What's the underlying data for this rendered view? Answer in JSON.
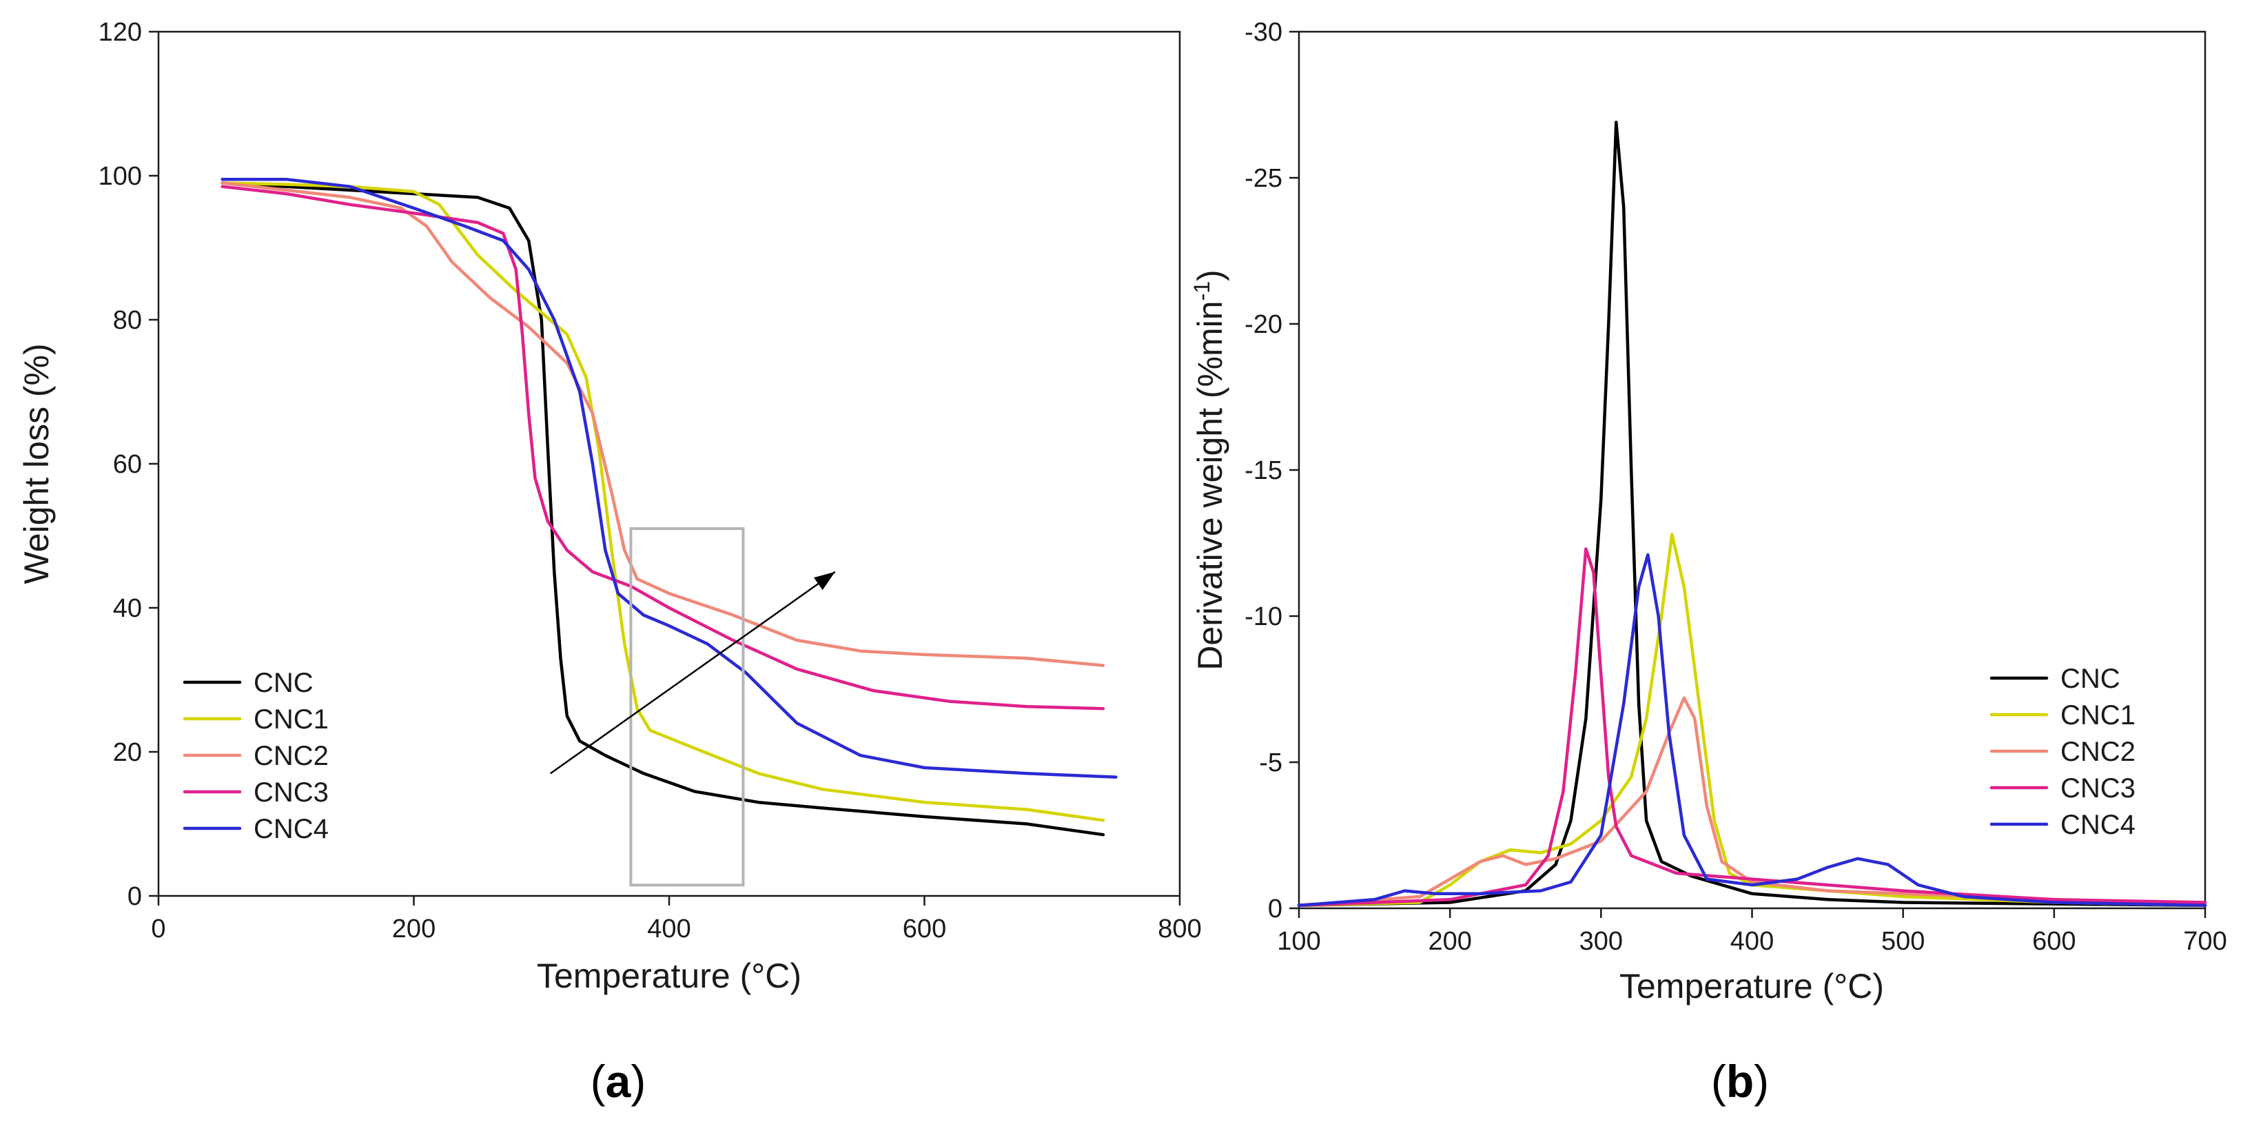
{
  "chart_data": [
    {
      "type": "line",
      "panel_label": "a",
      "title": "",
      "xlabel": "Temperature (°C)",
      "ylabel": "Weight loss (%)",
      "xlim": [
        0,
        800
      ],
      "ylim": [
        0,
        120
      ],
      "xticks": [
        0,
        200,
        400,
        600,
        800
      ],
      "yticks": [
        0,
        20,
        40,
        60,
        80,
        100,
        120
      ],
      "grid": false,
      "legend_position": "bottom-left",
      "annotations": [
        {
          "type": "rectangle",
          "x0": 370,
          "x1": 458,
          "y0": 1.5,
          "y1": 51
        },
        {
          "type": "arrow",
          "from": [
            307,
            17
          ],
          "to": [
            530,
            45
          ]
        }
      ],
      "series": [
        {
          "name": "CNC",
          "color": "#000000",
          "points": [
            [
              50,
              99
            ],
            [
              100,
              98.5
            ],
            [
              150,
              98
            ],
            [
              200,
              97.5
            ],
            [
              250,
              97
            ],
            [
              275,
              95.5
            ],
            [
              290,
              91
            ],
            [
              300,
              80
            ],
            [
              305,
              62
            ],
            [
              310,
              45
            ],
            [
              315,
              33
            ],
            [
              320,
              25
            ],
            [
              330,
              21.5
            ],
            [
              350,
              19.5
            ],
            [
              380,
              17
            ],
            [
              420,
              14.5
            ],
            [
              470,
              13
            ],
            [
              520,
              12.2
            ],
            [
              600,
              11
            ],
            [
              680,
              10
            ],
            [
              740,
              8.5
            ]
          ]
        },
        {
          "name": "CNC1",
          "color": "#d4d400",
          "points": [
            [
              50,
              99
            ],
            [
              100,
              98.8
            ],
            [
              150,
              98.5
            ],
            [
              200,
              97.8
            ],
            [
              220,
              96
            ],
            [
              250,
              89
            ],
            [
              280,
              84
            ],
            [
              300,
              81
            ],
            [
              320,
              78
            ],
            [
              335,
              72
            ],
            [
              345,
              62
            ],
            [
              355,
              48
            ],
            [
              365,
              35
            ],
            [
              375,
              26
            ],
            [
              385,
              23
            ],
            [
              420,
              20.5
            ],
            [
              470,
              17
            ],
            [
              520,
              14.8
            ],
            [
              600,
              13
            ],
            [
              680,
              12
            ],
            [
              740,
              10.5
            ]
          ]
        },
        {
          "name": "CNC2",
          "color": "#f08878",
          "points": [
            [
              50,
              99
            ],
            [
              100,
              98
            ],
            [
              150,
              97
            ],
            [
              190,
              95.5
            ],
            [
              210,
              93
            ],
            [
              230,
              88
            ],
            [
              260,
              83
            ],
            [
              290,
              79
            ],
            [
              320,
              74
            ],
            [
              340,
              67
            ],
            [
              355,
              56
            ],
            [
              365,
              48
            ],
            [
              375,
              44
            ],
            [
              400,
              42
            ],
            [
              450,
              39
            ],
            [
              500,
              35.5
            ],
            [
              550,
              34
            ],
            [
              600,
              33.5
            ],
            [
              680,
              33
            ],
            [
              740,
              32
            ]
          ]
        },
        {
          "name": "CNC3",
          "color": "#e0208c",
          "points": [
            [
              50,
              98.5
            ],
            [
              100,
              97.5
            ],
            [
              150,
              96
            ],
            [
              200,
              94.8
            ],
            [
              250,
              93.5
            ],
            [
              270,
              92
            ],
            [
              280,
              87
            ],
            [
              285,
              78
            ],
            [
              290,
              67
            ],
            [
              295,
              58
            ],
            [
              305,
              52
            ],
            [
              320,
              48
            ],
            [
              340,
              45
            ],
            [
              370,
              43
            ],
            [
              400,
              40
            ],
            [
              450,
              35.5
            ],
            [
              500,
              31.5
            ],
            [
              560,
              28.5
            ],
            [
              620,
              27
            ],
            [
              680,
              26.3
            ],
            [
              740,
              26
            ]
          ]
        },
        {
          "name": "CNC4",
          "color": "#2a2ad4",
          "points": [
            [
              50,
              99.5
            ],
            [
              100,
              99.5
            ],
            [
              150,
              98.5
            ],
            [
              200,
              95.5
            ],
            [
              240,
              93
            ],
            [
              270,
              91
            ],
            [
              290,
              87
            ],
            [
              310,
              80
            ],
            [
              330,
              70
            ],
            [
              340,
              60
            ],
            [
              350,
              48
            ],
            [
              360,
              42
            ],
            [
              380,
              39
            ],
            [
              400,
              37.5
            ],
            [
              430,
              35
            ],
            [
              460,
              31
            ],
            [
              500,
              24
            ],
            [
              550,
              19.5
            ],
            [
              600,
              17.8
            ],
            [
              680,
              17
            ],
            [
              750,
              16.5
            ]
          ]
        }
      ],
      "legend": [
        "CNC",
        "CNC1",
        "CNC2",
        "CNC3",
        "CNC4"
      ],
      "colors": {
        "CNC": "#000000",
        "CNC1": "#d4d400",
        "CNC2": "#f08878",
        "CNC3": "#e0208c",
        "CNC4": "#2a2ad4",
        "box": "#b4b4b4"
      }
    },
    {
      "type": "line",
      "panel_label": "b",
      "title": "",
      "xlabel": "Temperature (°C)",
      "ylabel": "Derivative weight (%min⁻¹)",
      "ylabel_parts": {
        "main": "Derivative weight (%min",
        "superscript": "-1",
        "close": ")"
      },
      "xlim": [
        100,
        700
      ],
      "ylim": [
        0,
        -30
      ],
      "y_axis_inverted": true,
      "xticks": [
        100,
        200,
        300,
        400,
        500,
        600,
        700
      ],
      "yticks": [
        0,
        -5,
        -10,
        -15,
        -20,
        -25,
        -30
      ],
      "grid": false,
      "legend_position": "bottom-right",
      "series": [
        {
          "name": "CNC",
          "color": "#000000",
          "points": [
            [
              100,
              -0.1
            ],
            [
              200,
              -0.2
            ],
            [
              250,
              -0.6
            ],
            [
              270,
              -1.5
            ],
            [
              280,
              -3
            ],
            [
              290,
              -6.5
            ],
            [
              300,
              -14
            ],
            [
              305,
              -20
            ],
            [
              310,
              -26.9
            ],
            [
              315,
              -24
            ],
            [
              320,
              -15
            ],
            [
              325,
              -7
            ],
            [
              330,
              -3
            ],
            [
              340,
              -1.6
            ],
            [
              360,
              -1.1
            ],
            [
              400,
              -0.5
            ],
            [
              450,
              -0.3
            ],
            [
              500,
              -0.2
            ],
            [
              700,
              -0.1
            ]
          ]
        },
        {
          "name": "CNC1",
          "color": "#d4d400",
          "points": [
            [
              100,
              -0.1
            ],
            [
              180,
              -0.2
            ],
            [
              200,
              -0.8
            ],
            [
              220,
              -1.6
            ],
            [
              240,
              -2
            ],
            [
              260,
              -1.9
            ],
            [
              280,
              -2.2
            ],
            [
              300,
              -3
            ],
            [
              320,
              -4.5
            ],
            [
              330,
              -6.5
            ],
            [
              340,
              -10
            ],
            [
              347,
              -12.8
            ],
            [
              355,
              -11
            ],
            [
              365,
              -7
            ],
            [
              375,
              -3
            ],
            [
              385,
              -1.2
            ],
            [
              400,
              -0.8
            ],
            [
              450,
              -0.6
            ],
            [
              500,
              -0.4
            ],
            [
              600,
              -0.2
            ],
            [
              700,
              -0.1
            ]
          ]
        },
        {
          "name": "CNC2",
          "color": "#f08878",
          "points": [
            [
              100,
              -0.1
            ],
            [
              180,
              -0.4
            ],
            [
              200,
              -1
            ],
            [
              220,
              -1.6
            ],
            [
              235,
              -1.8
            ],
            [
              250,
              -1.5
            ],
            [
              270,
              -1.7
            ],
            [
              300,
              -2.3
            ],
            [
              330,
              -4
            ],
            [
              345,
              -6
            ],
            [
              355,
              -7.2
            ],
            [
              362,
              -6.5
            ],
            [
              370,
              -3.5
            ],
            [
              380,
              -1.6
            ],
            [
              400,
              -0.9
            ],
            [
              450,
              -0.6
            ],
            [
              500,
              -0.5
            ],
            [
              600,
              -0.3
            ],
            [
              700,
              -0.1
            ]
          ]
        },
        {
          "name": "CNC3",
          "color": "#e0208c",
          "points": [
            [
              100,
              -0.1
            ],
            [
              200,
              -0.3
            ],
            [
              250,
              -0.8
            ],
            [
              265,
              -1.8
            ],
            [
              275,
              -4
            ],
            [
              283,
              -8
            ],
            [
              290,
              -12.3
            ],
            [
              295,
              -11.5
            ],
            [
              300,
              -8
            ],
            [
              305,
              -4.5
            ],
            [
              310,
              -2.8
            ],
            [
              320,
              -1.8
            ],
            [
              350,
              -1.2
            ],
            [
              400,
              -1
            ],
            [
              450,
              -0.8
            ],
            [
              500,
              -0.6
            ],
            [
              600,
              -0.3
            ],
            [
              700,
              -0.2
            ]
          ]
        },
        {
          "name": "CNC4",
          "color": "#2a2ad4",
          "points": [
            [
              100,
              -0.1
            ],
            [
              150,
              -0.3
            ],
            [
              170,
              -0.6
            ],
            [
              190,
              -0.5
            ],
            [
              220,
              -0.5
            ],
            [
              260,
              -0.6
            ],
            [
              280,
              -0.9
            ],
            [
              300,
              -2.5
            ],
            [
              315,
              -7
            ],
            [
              325,
              -11
            ],
            [
              331,
              -12.1
            ],
            [
              338,
              -10
            ],
            [
              345,
              -6
            ],
            [
              355,
              -2.5
            ],
            [
              370,
              -1
            ],
            [
              400,
              -0.8
            ],
            [
              430,
              -1
            ],
            [
              450,
              -1.4
            ],
            [
              470,
              -1.7
            ],
            [
              490,
              -1.5
            ],
            [
              510,
              -0.8
            ],
            [
              540,
              -0.4
            ],
            [
              600,
              -0.2
            ],
            [
              700,
              -0.1
            ]
          ]
        }
      ],
      "legend": [
        "CNC",
        "CNC1",
        "CNC2",
        "CNC3",
        "CNC4"
      ],
      "colors": {
        "CNC": "#000000",
        "CNC1": "#d4d400",
        "CNC2": "#f08878",
        "CNC3": "#e0208c",
        "CNC4": "#2a2ad4"
      }
    }
  ]
}
